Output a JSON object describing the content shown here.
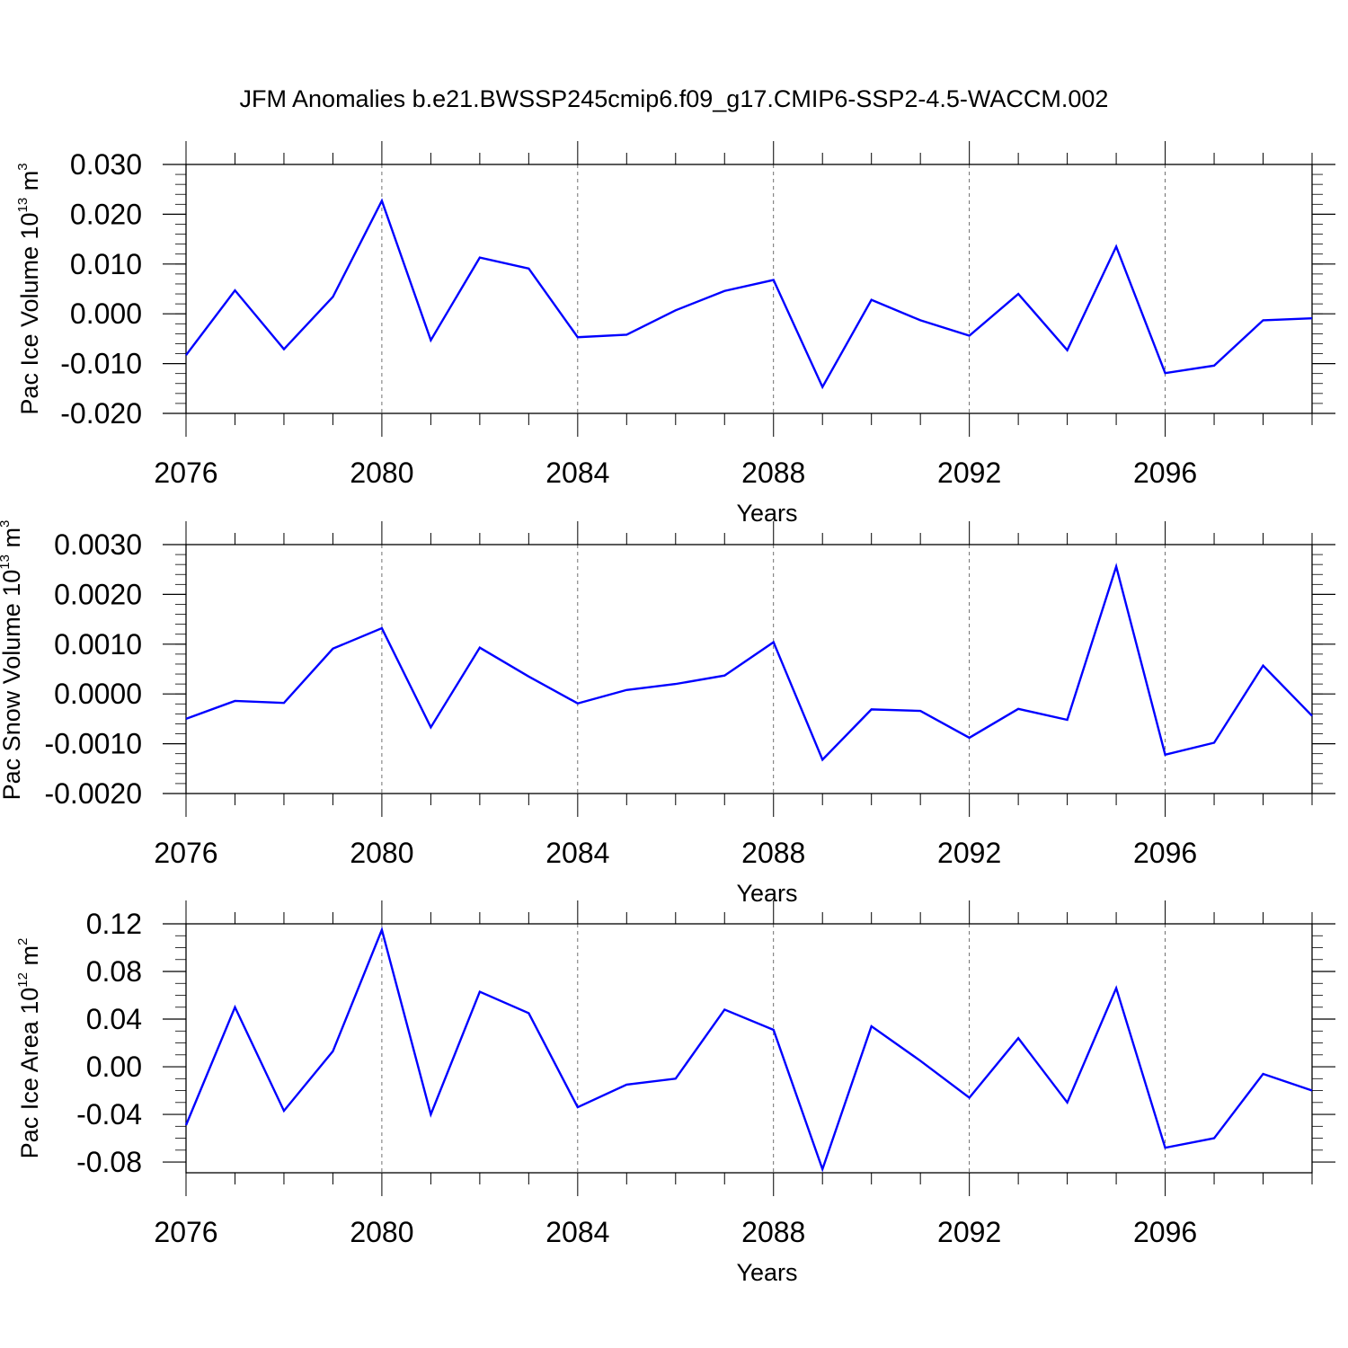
{
  "figure": {
    "title": "JFM Anomalies b.e21.BWSSP245cmip6.f09_g17.CMIP6-SSP2-4.5-WACCM.002"
  },
  "colors": {
    "series": "#0000ff",
    "axis": "#000000",
    "grid": "#000000"
  },
  "chart_data": [
    {
      "type": "line",
      "title": "",
      "xlabel": "Years",
      "ylabel": {
        "main": "Pac Ice Volume 10",
        "exp": "13",
        "unit": " m",
        "unit_exp": "3"
      },
      "x": [
        2076,
        2077,
        2078,
        2079,
        2080,
        2081,
        2082,
        2083,
        2084,
        2085,
        2086,
        2087,
        2088,
        2089,
        2090,
        2091,
        2092,
        2093,
        2094,
        2095,
        2096,
        2097,
        2098,
        2099
      ],
      "series": [
        {
          "values": [
            -0.0083,
            0.0047,
            -0.0071,
            0.0034,
            0.0227,
            -0.0053,
            0.0113,
            0.0091,
            -0.0047,
            -0.0042,
            0.0007,
            0.0046,
            0.0068,
            -0.0147,
            0.0028,
            -0.0013,
            -0.0044,
            0.004,
            -0.0073,
            0.0135,
            -0.0119,
            -0.0104,
            -0.0013,
            -0.0009
          ]
        }
      ],
      "xlim": [
        2076,
        2099
      ],
      "ylim": [
        -0.02,
        0.03
      ],
      "x_ticks": [
        "2076",
        "2080",
        "2084",
        "2088",
        "2092",
        "2096"
      ],
      "x_tick_values": [
        2076,
        2080,
        2084,
        2088,
        2092,
        2096
      ],
      "y_ticks": [
        "0.030",
        "0.020",
        "0.010",
        "0.000",
        "-0.010",
        "-0.020"
      ],
      "y_tick_values": [
        0.03,
        0.02,
        0.01,
        0.0,
        -0.01,
        -0.02
      ],
      "y_minor_step": 0.002,
      "grid": "dashed vertical lines at labeled years"
    },
    {
      "type": "line",
      "title": "",
      "xlabel": "Years",
      "ylabel": {
        "main": "Pac Snow Volume 10",
        "exp": "13",
        "unit": " m",
        "unit_exp": "3"
      },
      "x": [
        2076,
        2077,
        2078,
        2079,
        2080,
        2081,
        2082,
        2083,
        2084,
        2085,
        2086,
        2087,
        2088,
        2089,
        2090,
        2091,
        2092,
        2093,
        2094,
        2095,
        2096,
        2097,
        2098,
        2099
      ],
      "series": [
        {
          "values": [
            -0.0005,
            -0.00014,
            -0.00018,
            0.00091,
            0.00132,
            -0.00067,
            0.00093,
            0.00035,
            -0.00019,
            8e-05,
            0.0002,
            0.00037,
            0.00104,
            -0.00132,
            -0.00031,
            -0.00034,
            -0.00088,
            -0.0003,
            -0.00052,
            0.00256,
            -0.00122,
            -0.00098,
            0.00057,
            -0.00044
          ]
        }
      ],
      "xlim": [
        2076,
        2099
      ],
      "ylim": [
        -0.002,
        0.003
      ],
      "x_ticks": [
        "2076",
        "2080",
        "2084",
        "2088",
        "2092",
        "2096"
      ],
      "x_tick_values": [
        2076,
        2080,
        2084,
        2088,
        2092,
        2096
      ],
      "y_ticks": [
        "0.0030",
        "0.0020",
        "0.0010",
        "0.0000",
        "-0.0010",
        "-0.0020"
      ],
      "y_tick_values": [
        0.003,
        0.002,
        0.001,
        0.0,
        -0.001,
        -0.002
      ],
      "y_minor_step": 0.0002,
      "grid": "dashed vertical lines at labeled years"
    },
    {
      "type": "line",
      "title": "",
      "xlabel": "Years",
      "ylabel": {
        "main": "Pac Ice Area 10",
        "exp": "12",
        "unit": " m",
        "unit_exp": "2"
      },
      "x": [
        2076,
        2077,
        2078,
        2079,
        2080,
        2081,
        2082,
        2083,
        2084,
        2085,
        2086,
        2087,
        2088,
        2089,
        2090,
        2091,
        2092,
        2093,
        2094,
        2095,
        2096,
        2097,
        2098,
        2099
      ],
      "series": [
        {
          "values": [
            -0.049,
            0.05,
            -0.037,
            0.013,
            0.115,
            -0.04,
            0.063,
            0.045,
            -0.034,
            -0.015,
            -0.01,
            0.048,
            0.031,
            -0.086,
            0.034,
            0.005,
            -0.026,
            0.024,
            -0.03,
            0.066,
            -0.068,
            -0.06,
            -0.006,
            -0.02
          ]
        }
      ],
      "xlim": [
        2076,
        2099
      ],
      "ylim": [
        -0.089,
        0.12
      ],
      "x_ticks": [
        "2076",
        "2080",
        "2084",
        "2088",
        "2092",
        "2096"
      ],
      "x_tick_values": [
        2076,
        2080,
        2084,
        2088,
        2092,
        2096
      ],
      "y_ticks": [
        "0.12",
        "0.08",
        "0.04",
        "0.00",
        "-0.04",
        "-0.08"
      ],
      "y_tick_values": [
        0.12,
        0.08,
        0.04,
        0.0,
        -0.04,
        -0.08
      ],
      "y_minor_step": 0.01,
      "grid": "dashed vertical lines at labeled years"
    }
  ]
}
